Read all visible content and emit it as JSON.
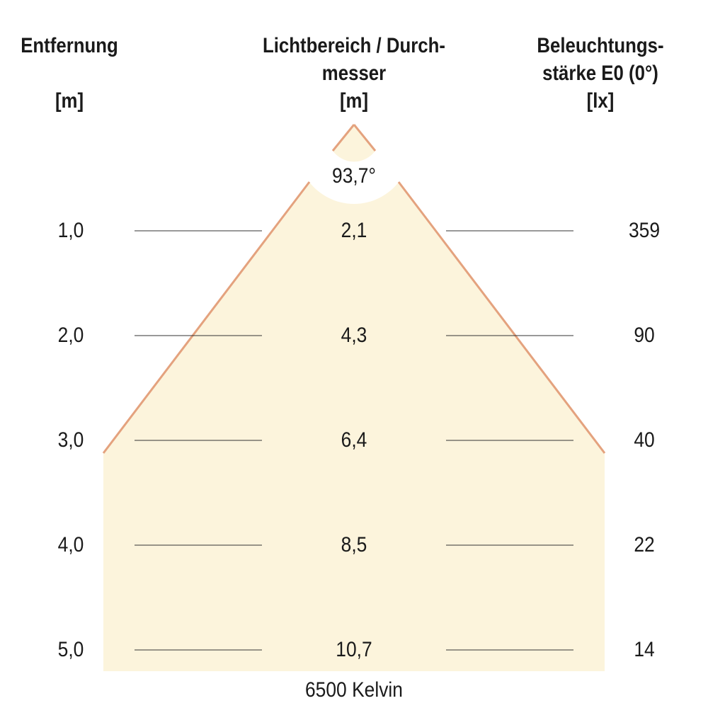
{
  "headers": {
    "distance": [
      "Entfernung",
      "",
      "[m]"
    ],
    "diameter": [
      "Lichtbereich / Durch-",
      "messer",
      "[m]"
    ],
    "illuminance": [
      "Beleuchtungs-",
      "stärke E0 (0°)",
      "[lx]"
    ]
  },
  "beam_angle": "93,7°",
  "rows": [
    {
      "distance": "1,0",
      "diameter": "2,1",
      "illuminance": "359"
    },
    {
      "distance": "2,0",
      "diameter": "4,3",
      "illuminance": "90"
    },
    {
      "distance": "3,0",
      "diameter": "6,4",
      "illuminance": "40"
    },
    {
      "distance": "4,0",
      "diameter": "8,5",
      "illuminance": "22"
    },
    {
      "distance": "5,0",
      "diameter": "10,7",
      "illuminance": "14"
    }
  ],
  "color_temperature": "6500 Kelvin",
  "colors": {
    "light_fill": "#fcf4dc",
    "beam_edge": "#e4a27e",
    "grid_line": "#333333",
    "text": "#1a1a1a"
  }
}
